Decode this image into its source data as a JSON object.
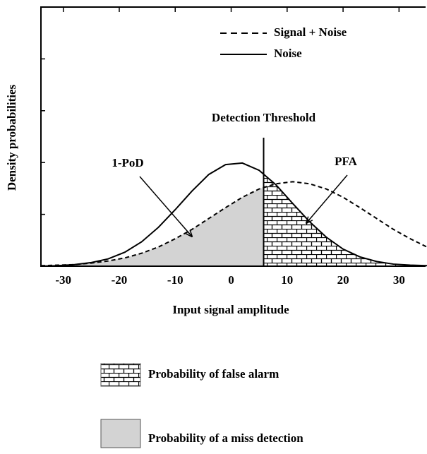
{
  "chart_data": {
    "type": "line",
    "x_label": "Input signal amplitude",
    "y_label": "Density probabilities",
    "x": [
      -34,
      -31,
      -28,
      -25,
      -22,
      -19,
      -16,
      -13,
      -10,
      -7,
      -4,
      -1,
      2,
      5,
      8,
      11,
      14,
      17,
      20,
      23,
      26,
      29,
      32,
      35
    ],
    "series": [
      {
        "name": "Signal + Noise",
        "color": "#000000",
        "dash": true,
        "values": [
          0.01,
          0.02,
          0.03,
          0.06,
          0.1,
          0.16,
          0.25,
          0.37,
          0.53,
          0.71,
          0.92,
          1.13,
          1.33,
          1.49,
          1.59,
          1.63,
          1.59,
          1.49,
          1.33,
          1.13,
          0.92,
          0.71,
          0.53,
          0.37
        ]
      },
      {
        "name": "Noise",
        "color": "#000000",
        "dash": false,
        "values": [
          0.0,
          0.01,
          0.03,
          0.07,
          0.14,
          0.27,
          0.47,
          0.75,
          1.09,
          1.45,
          1.77,
          1.96,
          1.99,
          1.85,
          1.57,
          1.21,
          0.86,
          0.56,
          0.33,
          0.18,
          0.09,
          0.04,
          0.02,
          0.01
        ]
      }
    ],
    "xlim": [
      -34,
      35
    ],
    "xticks": [
      -30,
      -20,
      -10,
      0,
      10,
      20,
      30
    ],
    "ylim": [
      0,
      5
    ],
    "yticks": [
      1,
      2,
      3,
      4
    ],
    "threshold": {
      "x": 5.8,
      "label": "Detection Threshold"
    },
    "areas": [
      {
        "name": "Probability of false alarm",
        "pattern": "brick",
        "series": 1,
        "side": "right"
      },
      {
        "name": "Probability of a miss detection",
        "color": "#d3d3d3",
        "series": 0,
        "side": "left"
      }
    ],
    "annotations": [
      {
        "text": "1-PoD",
        "area": 1
      },
      {
        "text": "PFA",
        "area": 0
      }
    ]
  }
}
